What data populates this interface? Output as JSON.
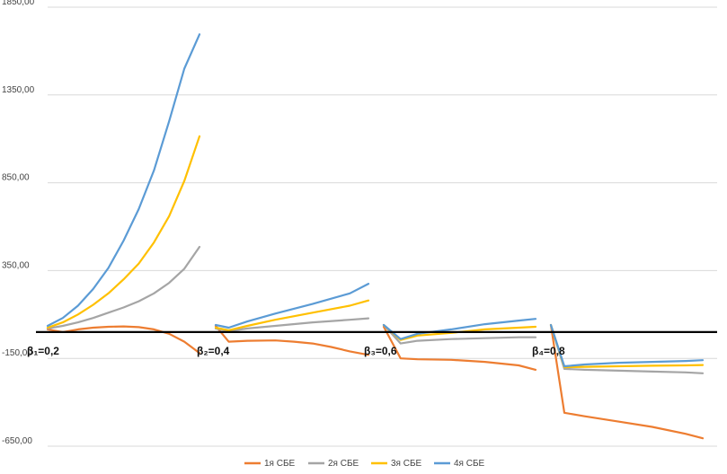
{
  "chart_data": {
    "type": "line",
    "title": "",
    "xlabel": "",
    "ylabel": "",
    "ylim": [
      -650,
      1850
    ],
    "yticks": [
      {
        "value": 1850,
        "label": "1850,00"
      },
      {
        "value": 1350,
        "label": "1350,00"
      },
      {
        "value": 850,
        "label": "850,00"
      },
      {
        "value": 350,
        "label": "350,00"
      },
      {
        "value": -150,
        "label": "-150,00"
      },
      {
        "value": -650,
        "label": "-650,00"
      }
    ],
    "grid": true,
    "legend": "bottom",
    "baseline": 0,
    "segments": [
      {
        "label": "β₁=0,2",
        "range": [
          0.0,
          1.0
        ]
      },
      {
        "label": "β₂=0,4",
        "range": [
          1.18,
          2.0
        ]
      },
      {
        "label": "β₃=0,6",
        "range": [
          2.1,
          3.0
        ]
      },
      {
        "label": "β₄=0,8",
        "range": [
          3.1,
          4.0
        ]
      }
    ],
    "series": [
      {
        "name": "1я СБЕ",
        "color": "#ed7d31",
        "segments": [
          {
            "x": [
              0.0,
              0.1,
              0.2,
              0.3,
              0.4,
              0.5,
              0.6,
              0.7,
              0.8,
              0.9,
              1.0
            ],
            "y": [
              15,
              0,
              15,
              25,
              30,
              32,
              28,
              15,
              -10,
              -55,
              -120
            ]
          },
          {
            "x": [
              1.18,
              1.25,
              1.35,
              1.5,
              1.6,
              1.7,
              1.8,
              1.9,
              2.0
            ],
            "y": [
              35,
              -55,
              -50,
              -48,
              -55,
              -65,
              -85,
              -110,
              -130
            ]
          },
          {
            "x": [
              2.1,
              2.2,
              2.3,
              2.5,
              2.7,
              2.9,
              3.0
            ],
            "y": [
              30,
              -150,
              -155,
              -158,
              -170,
              -190,
              -215
            ]
          },
          {
            "x": [
              3.1,
              3.18,
              3.3,
              3.5,
              3.7,
              3.9,
              4.0
            ],
            "y": [
              40,
              -460,
              -480,
              -510,
              -540,
              -580,
              -605
            ]
          }
        ]
      },
      {
        "name": "2я СБЕ",
        "color": "#a5a5a5",
        "segments": [
          {
            "x": [
              0.0,
              0.1,
              0.2,
              0.3,
              0.4,
              0.5,
              0.6,
              0.7,
              0.8,
              0.9,
              1.0
            ],
            "y": [
              20,
              35,
              55,
              80,
              110,
              140,
              175,
              220,
              280,
              360,
              485
            ]
          },
          {
            "x": [
              1.18,
              1.25,
              1.35,
              1.5,
              1.7,
              1.9,
              2.0
            ],
            "y": [
              20,
              5,
              20,
              35,
              55,
              70,
              78
            ]
          },
          {
            "x": [
              2.1,
              2.2,
              2.3,
              2.5,
              2.7,
              2.9,
              3.0
            ],
            "y": [
              40,
              -65,
              -50,
              -40,
              -35,
              -30,
              -30
            ]
          },
          {
            "x": [
              3.1,
              3.18,
              3.3,
              3.5,
              3.7,
              3.9,
              4.0
            ],
            "y": [
              40,
              -210,
              -215,
              -220,
              -225,
              -230,
              -235
            ]
          }
        ]
      },
      {
        "name": "3я СБЕ",
        "color": "#ffc000",
        "segments": [
          {
            "x": [
              0.0,
              0.1,
              0.2,
              0.3,
              0.4,
              0.5,
              0.6,
              0.7,
              0.8,
              0.9,
              1.0
            ],
            "y": [
              25,
              55,
              100,
              155,
              220,
              300,
              390,
              510,
              660,
              860,
              1115
            ]
          },
          {
            "x": [
              1.18,
              1.25,
              1.35,
              1.5,
              1.7,
              1.9,
              2.0
            ],
            "y": [
              25,
              10,
              35,
              70,
              110,
              150,
              180
            ]
          },
          {
            "x": [
              2.1,
              2.2,
              2.3,
              2.5,
              2.7,
              2.9,
              3.0
            ],
            "y": [
              40,
              -45,
              -20,
              -5,
              15,
              25,
              30
            ]
          },
          {
            "x": [
              3.1,
              3.18,
              3.3,
              3.5,
              3.7,
              3.9,
              4.0
            ],
            "y": [
              40,
              -200,
              -198,
              -195,
              -192,
              -190,
              -188
            ]
          }
        ]
      },
      {
        "name": "4я СБЕ",
        "color": "#5b9bd5",
        "segments": [
          {
            "x": [
              0.0,
              0.1,
              0.2,
              0.3,
              0.4,
              0.5,
              0.6,
              0.7,
              0.8,
              0.9,
              1.0
            ],
            "y": [
              35,
              80,
              150,
              245,
              365,
              520,
              700,
              920,
              1200,
              1500,
              1695
            ]
          },
          {
            "x": [
              1.18,
              1.25,
              1.35,
              1.5,
              1.7,
              1.9,
              2.0
            ],
            "y": [
              40,
              25,
              60,
              105,
              160,
              220,
              275
            ]
          },
          {
            "x": [
              2.1,
              2.2,
              2.3,
              2.5,
              2.7,
              2.9,
              3.0
            ],
            "y": [
              40,
              -40,
              -10,
              15,
              45,
              65,
              75
            ]
          },
          {
            "x": [
              3.1,
              3.18,
              3.3,
              3.5,
              3.7,
              3.9,
              4.0
            ],
            "y": [
              40,
              -195,
              -185,
              -175,
              -170,
              -165,
              -160
            ]
          }
        ]
      }
    ]
  }
}
